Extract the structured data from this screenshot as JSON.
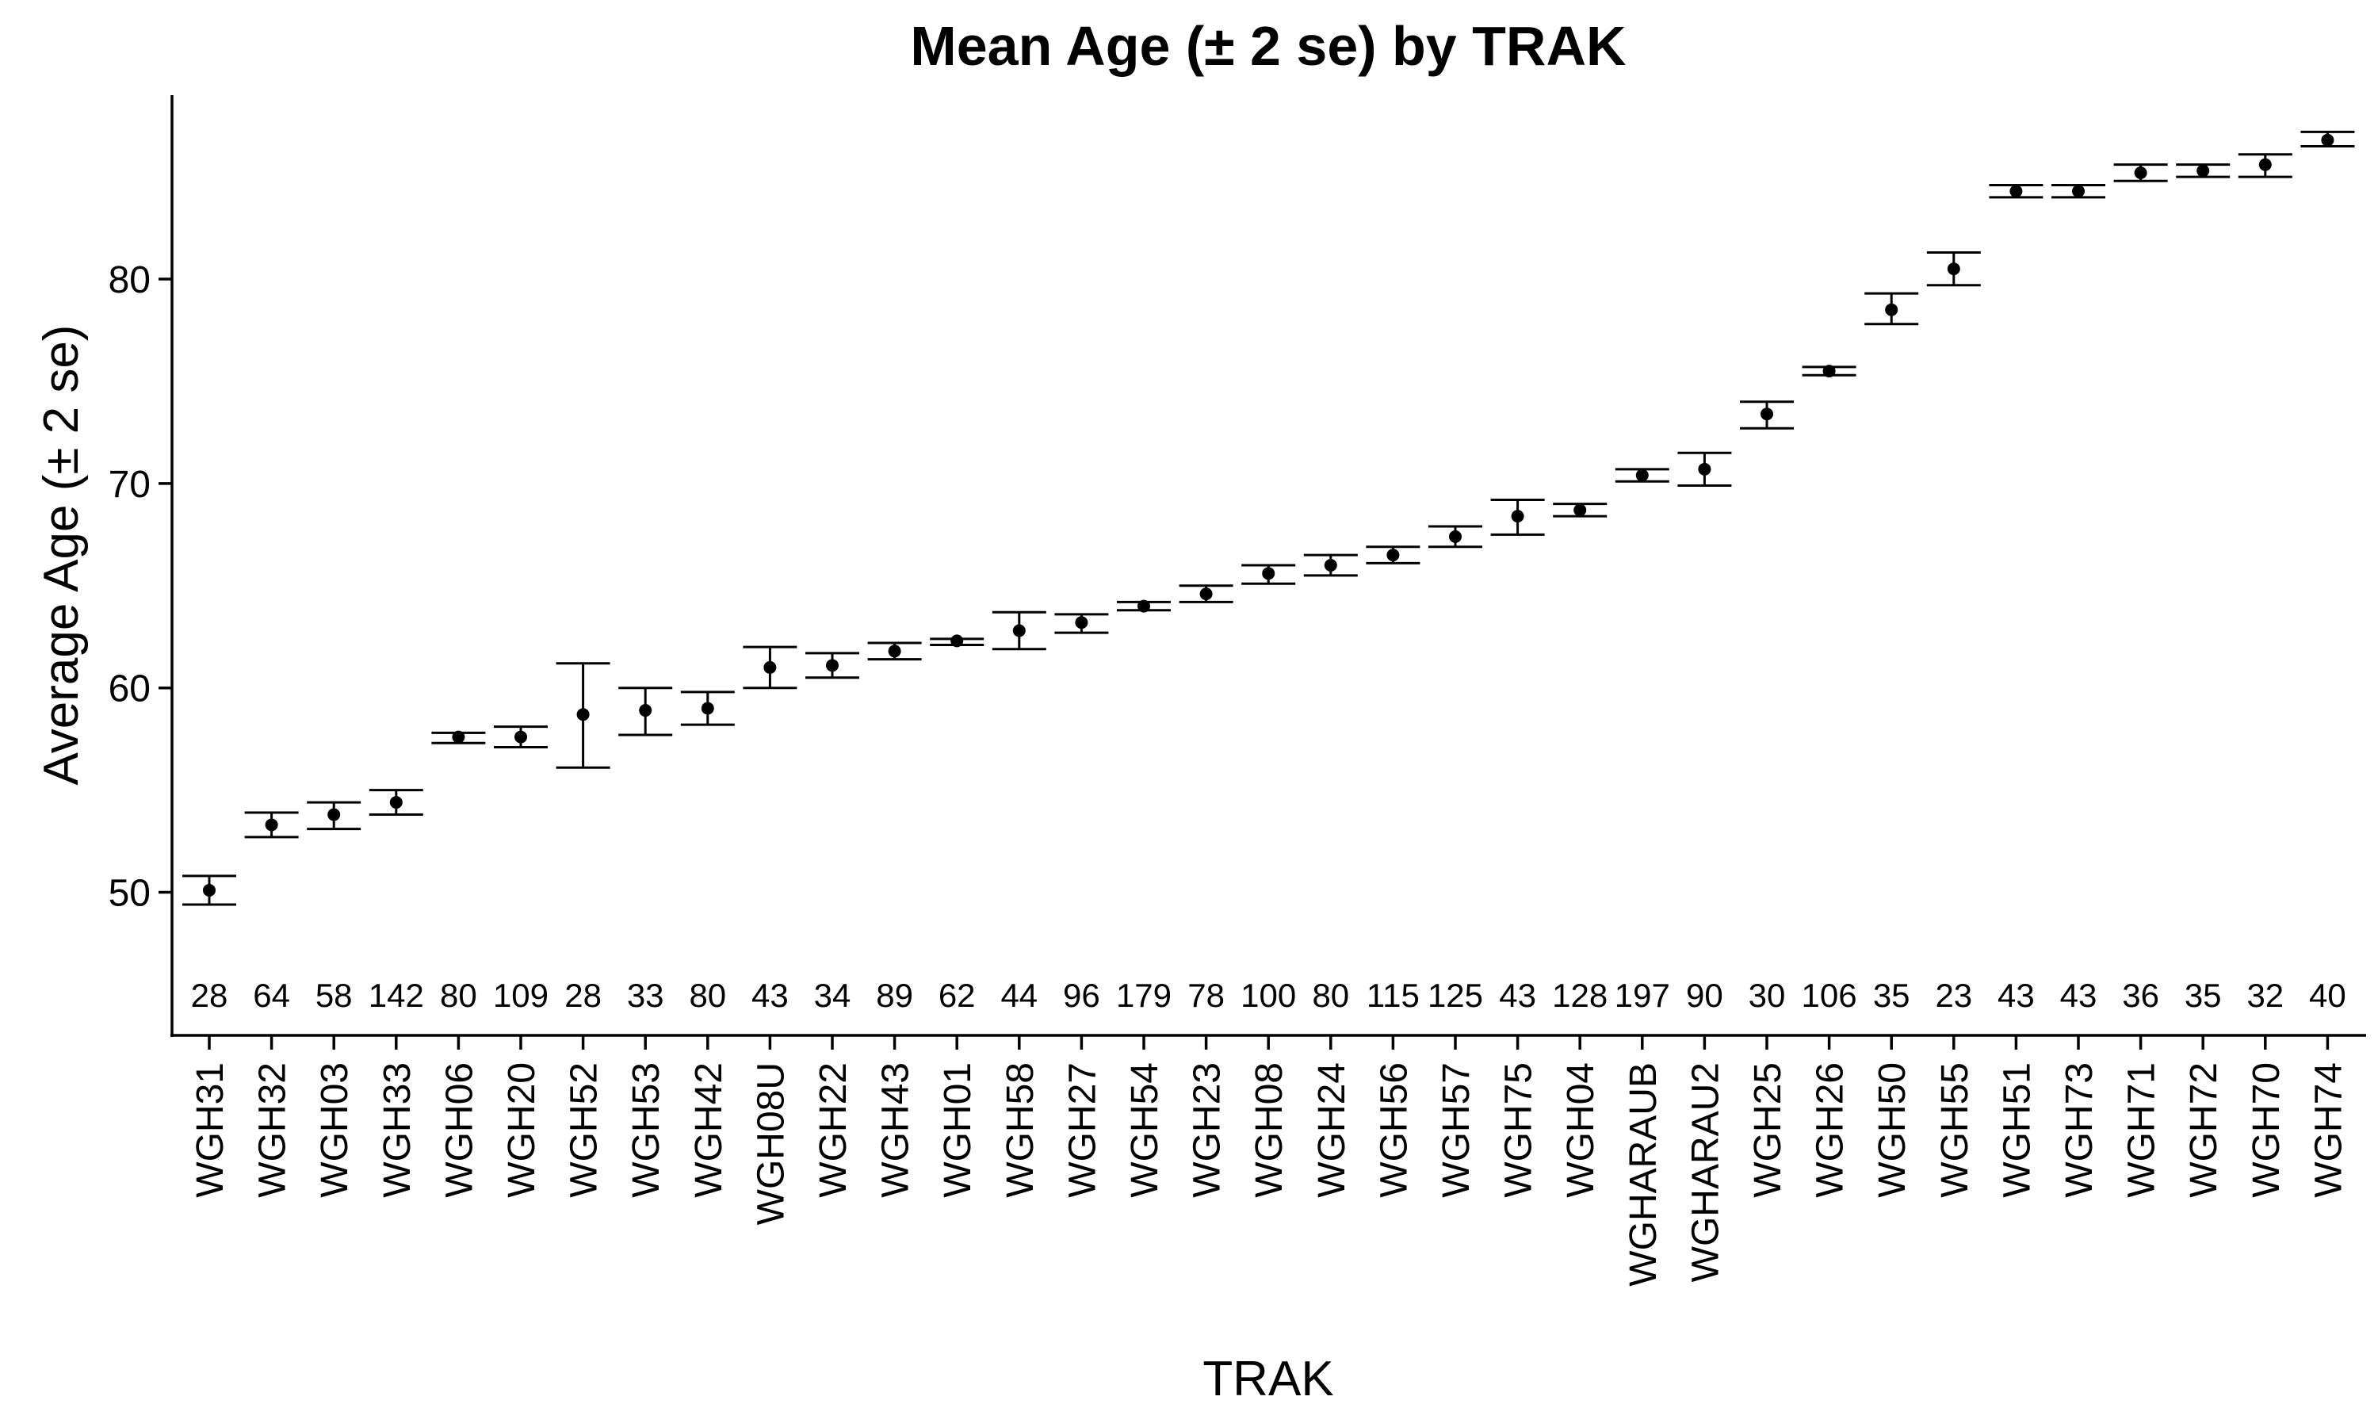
{
  "chart_data": {
    "type": "errorbar",
    "title": "Mean Age (± 2 se) by TRAK",
    "xlabel": "TRAK",
    "ylabel": "Average Age (± 2 se)",
    "ylim": [
      43,
      89
    ],
    "yticks": [
      "50",
      "60",
      "70",
      "80"
    ],
    "grid": false,
    "legend": "none",
    "categories": [
      "WGH31",
      "WGH32",
      "WGH03",
      "WGH33",
      "WGH06",
      "WGH20",
      "WGH52",
      "WGH53",
      "WGH42",
      "WGH08U",
      "WGH22",
      "WGH43",
      "WGH01",
      "WGH58",
      "WGH27",
      "WGH54",
      "WGH23",
      "WGH08",
      "WGH24",
      "WGH56",
      "WGH57",
      "WGH75",
      "WGH04",
      "WGHARAUB",
      "WGHARAU2",
      "WGH25",
      "WGH26",
      "WGH50",
      "WGH55",
      "WGH51",
      "WGH73",
      "WGH71",
      "WGH72",
      "WGH70",
      "WGH74"
    ],
    "mean": [
      50.1,
      53.3,
      53.8,
      54.4,
      57.6,
      57.6,
      58.7,
      58.9,
      59.0,
      61.0,
      61.1,
      61.8,
      62.3,
      62.8,
      63.2,
      64.0,
      64.6,
      65.6,
      66.0,
      66.5,
      67.4,
      68.4,
      68.7,
      70.4,
      70.7,
      73.4,
      75.5,
      78.5,
      80.5,
      84.3,
      84.3,
      85.2,
      85.3,
      85.6,
      86.8
    ],
    "lower": [
      49.4,
      52.7,
      53.1,
      53.8,
      57.3,
      57.1,
      56.1,
      57.7,
      58.2,
      60.0,
      60.5,
      61.4,
      62.1,
      61.9,
      62.7,
      63.8,
      64.2,
      65.1,
      65.5,
      66.1,
      66.9,
      67.5,
      68.4,
      70.1,
      69.9,
      72.7,
      75.3,
      77.8,
      79.7,
      84.0,
      84.0,
      84.8,
      85.0,
      85.0,
      86.5
    ],
    "upper": [
      50.8,
      53.9,
      54.4,
      55.0,
      57.8,
      58.1,
      61.2,
      60.0,
      59.8,
      62.0,
      61.7,
      62.2,
      62.4,
      63.7,
      63.6,
      64.2,
      65.0,
      66.0,
      66.5,
      66.9,
      67.9,
      69.2,
      69.0,
      70.7,
      71.5,
      74.0,
      75.7,
      79.3,
      81.3,
      84.6,
      84.6,
      85.6,
      85.6,
      86.1,
      87.2
    ],
    "n_labels": [
      "28",
      "64",
      "58",
      "142",
      "80",
      "109",
      "28",
      "33",
      "80",
      "43",
      "34",
      "89",
      "62",
      "44",
      "96",
      "179",
      "78",
      "100",
      "80",
      "115",
      "125",
      "43",
      "128",
      "197",
      "90",
      "30",
      "106",
      "35",
      "23",
      "43",
      "43",
      "36",
      "35",
      "32",
      "40"
    ]
  }
}
